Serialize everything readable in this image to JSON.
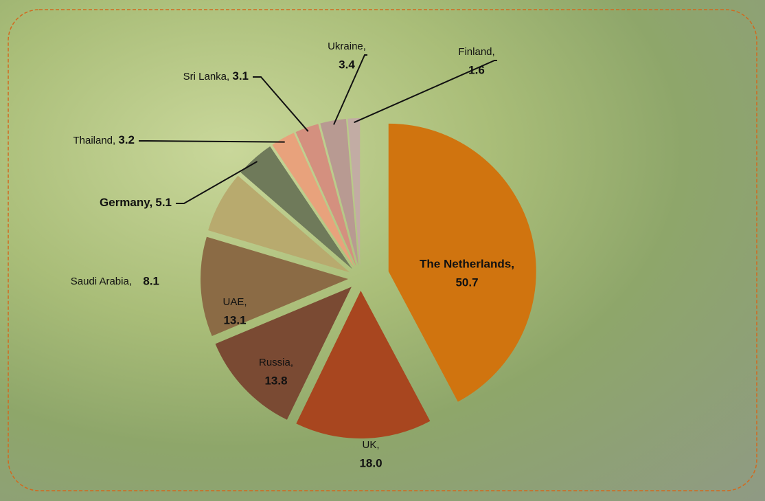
{
  "chart_data": {
    "type": "pie",
    "categories": [
      "The Netherlands,",
      "UK,",
      "Russia,",
      "UAE,",
      "Saudi Arabia,",
      "Germany,",
      "Thailand,",
      "Sri Lanka,",
      "Ukraine,",
      "Finland,"
    ],
    "values": [
      50.7,
      18.0,
      13.8,
      13.1,
      8.1,
      5.1,
      3.2,
      3.1,
      3.4,
      1.6
    ],
    "value_labels": [
      "50.7",
      "18.0",
      "13.8",
      "13.1",
      "8.1",
      "5.1",
      "3.2",
      "3.1",
      "3.4",
      "1.6"
    ],
    "colors": [
      "#d0740f",
      "#a8461f",
      "#7a4a33",
      "#8b6b45",
      "#b8aa6e",
      "#6f7a5a",
      "#e8a27c",
      "#d4907f",
      "#b89a92",
      "#c2aca4"
    ]
  }
}
